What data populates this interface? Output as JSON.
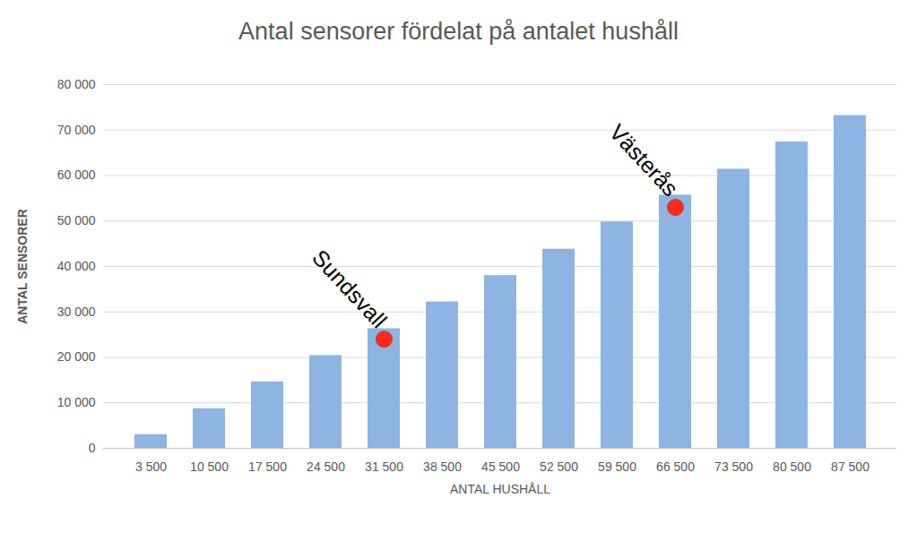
{
  "chart_data": {
    "type": "bar",
    "title": "Antal sensorer fördelat på antalet hushåll",
    "xlabel": "ANTAL HUSHÅLL",
    "ylabel": "ANTAL SENSORER",
    "categories": [
      "3 500",
      "10 500",
      "17 500",
      "24 500",
      "31 500",
      "38 500",
      "45 500",
      "52 500",
      "59 500",
      "66 500",
      "73 500",
      "80 500",
      "87 500"
    ],
    "values": [
      3000,
      8700,
      14600,
      20400,
      26300,
      32200,
      38000,
      43800,
      49800,
      55700,
      61400,
      67400,
      73200
    ],
    "color": "#8db4e2",
    "ylim": [
      0,
      80000
    ],
    "yticks": [
      0,
      {
        "value": 10000,
        "label": "10 000"
      },
      {
        "value": 20000,
        "label": "20 000"
      },
      {
        "value": 30000,
        "label": "30 000"
      },
      {
        "value": 40000,
        "label": "40 000"
      },
      {
        "value": 50000,
        "label": "50 000"
      },
      {
        "value": 60000,
        "label": "60 000"
      },
      {
        "value": 70000,
        "label": "70 000"
      },
      {
        "value": 80000,
        "label": "80 000"
      }
    ],
    "grid": true,
    "annotations": [
      {
        "text": "Sundsvall",
        "category": "31 500",
        "value": 24000
      },
      {
        "text": "Västerås",
        "category": "66 500",
        "value": 53000
      }
    ]
  }
}
